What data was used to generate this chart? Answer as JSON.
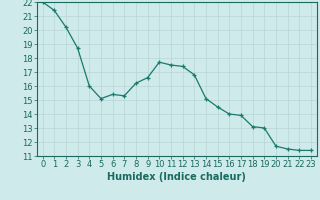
{
  "x": [
    0,
    1,
    2,
    3,
    4,
    5,
    6,
    7,
    8,
    9,
    10,
    11,
    12,
    13,
    14,
    15,
    16,
    17,
    18,
    19,
    20,
    21,
    22,
    23
  ],
  "y": [
    22.0,
    21.4,
    20.2,
    18.7,
    16.0,
    15.1,
    15.4,
    15.3,
    16.2,
    16.6,
    17.7,
    17.5,
    17.4,
    16.8,
    15.1,
    14.5,
    14.0,
    13.9,
    13.1,
    13.0,
    11.7,
    11.5,
    11.4,
    11.4
  ],
  "xlabel": "Humidex (Indice chaleur)",
  "ylim": [
    11,
    22
  ],
  "xlim": [
    -0.5,
    23.5
  ],
  "yticks": [
    11,
    12,
    13,
    14,
    15,
    16,
    17,
    18,
    19,
    20,
    21,
    22
  ],
  "xticks": [
    0,
    1,
    2,
    3,
    4,
    5,
    6,
    7,
    8,
    9,
    10,
    11,
    12,
    13,
    14,
    15,
    16,
    17,
    18,
    19,
    20,
    21,
    22,
    23
  ],
  "line_color": "#1a7a6e",
  "marker_color": "#1a7a6e",
  "bg_color": "#ceeaea",
  "grid_color": "#b8d4d4",
  "tick_label_color": "#1a6a60",
  "xlabel_color": "#1a6a60",
  "xlabel_fontsize": 7,
  "tick_fontsize": 6,
  "spine_color": "#1a6a60"
}
